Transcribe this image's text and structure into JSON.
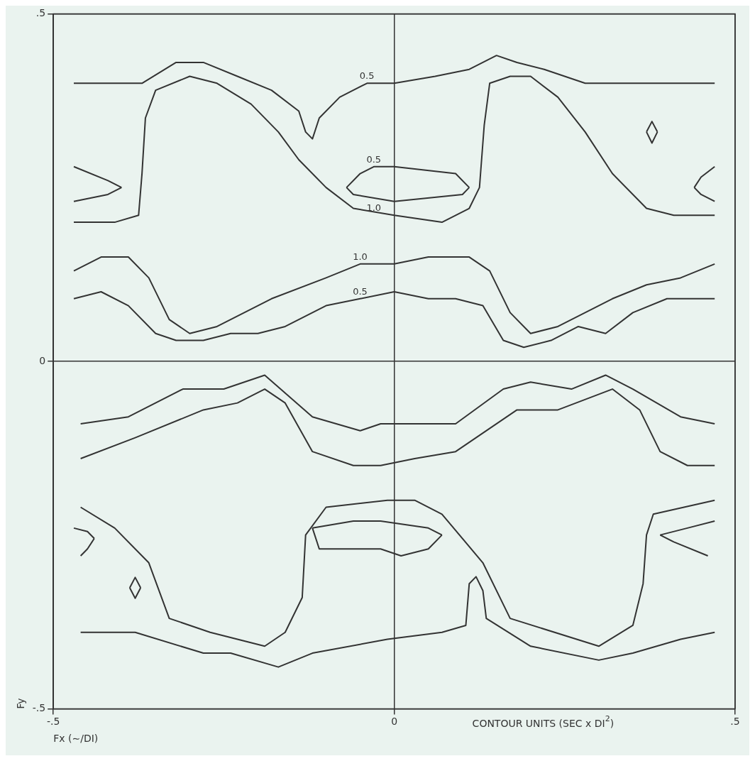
{
  "chart_data": {
    "type": "line",
    "xlabel": "Fx (∼/DI)",
    "ylabel": "Fy",
    "annotations": [
      {
        "text": "0.5",
        "x": -0.04,
        "y": 0.4
      },
      {
        "text": "0.5",
        "x": -0.03,
        "y": 0.28
      },
      {
        "text": "1.0",
        "x": -0.03,
        "y": 0.21
      },
      {
        "text": "1.0",
        "x": -0.05,
        "y": 0.14
      },
      {
        "text": "0.5",
        "x": -0.05,
        "y": 0.09
      },
      "CONTOUR UNITS (SEC x DI$^{2}$)"
    ],
    "xlim": [
      -0.5,
      0.5
    ],
    "ylim": [
      -0.5,
      0.5
    ],
    "xticks": [
      {
        "value": -0.5,
        "label": "-.5"
      },
      0,
      {
        "value": 0.5,
        "label": ".5"
      }
    ],
    "yticks": [
      {
        "value": -0.5,
        "label": "-.5"
      },
      0,
      {
        "value": 0.5,
        "label": ".5"
      }
    ],
    "grid": true,
    "legend": false,
    "marker": "none",
    "line_style": "solid",
    "series": [
      {
        "color": "#333333",
        "x": [
          -0.47,
          -0.37,
          -0.32,
          -0.28,
          -0.23,
          -0.18,
          -0.14,
          -0.13,
          -0.12,
          -0.11,
          -0.08,
          -0.04,
          0,
          0.06,
          0.11,
          0.15,
          0.18,
          0.22,
          0.28,
          0.35,
          0.47
        ],
        "values": [
          0.4,
          0.4,
          0.43,
          0.43,
          0.41,
          0.39,
          0.36,
          0.33,
          0.32,
          0.35,
          0.38,
          0.4,
          0.4,
          0.41,
          0.42,
          0.44,
          0.43,
          0.42,
          0.4,
          0.4,
          0.4
        ]
      },
      {
        "color": "#333333",
        "x": [
          -0.47,
          -0.41,
          -0.375,
          -0.37,
          -0.365,
          -0.35,
          -0.3,
          -0.26,
          -0.21,
          -0.17,
          -0.14,
          -0.1,
          -0.06,
          0,
          0.07,
          0.11,
          0.125,
          0.132,
          0.14,
          0.17,
          0.2,
          0.24,
          0.28,
          0.32,
          0.37,
          0.41,
          0.47
        ],
        "values": [
          0.2,
          0.2,
          0.21,
          0.27,
          0.35,
          0.39,
          0.41,
          0.4,
          0.37,
          0.33,
          0.29,
          0.25,
          0.22,
          0.21,
          0.2,
          0.22,
          0.25,
          0.34,
          0.4,
          0.41,
          0.41,
          0.38,
          0.33,
          0.27,
          0.22,
          0.21,
          0.21
        ]
      },
      {
        "color": "#333333",
        "x": [
          -0.07,
          -0.05,
          -0.03,
          0,
          0.09,
          0.11
        ],
        "values": [
          0.25,
          0.27,
          0.28,
          0.28,
          0.27,
          0.25
        ]
      },
      {
        "color": "#333333",
        "x": [
          -0.07,
          -0.06,
          0,
          0.1,
          0.11
        ],
        "values": [
          0.25,
          0.24,
          0.23,
          0.24,
          0.25
        ]
      },
      {
        "color": "#333333",
        "x": [
          -0.47,
          -0.42,
          -0.4
        ],
        "values": [
          0.28,
          0.26,
          0.25
        ]
      },
      {
        "color": "#333333",
        "x": [
          -0.47,
          -0.42,
          -0.4
        ],
        "values": [
          0.23,
          0.24,
          0.25
        ]
      },
      {
        "color": "#333333",
        "x": [
          0.44,
          0.45,
          0.47
        ],
        "values": [
          0.25,
          0.265,
          0.28
        ]
      },
      {
        "color": "#333333",
        "x": [
          0.44,
          0.45,
          0.47
        ],
        "values": [
          0.25,
          0.24,
          0.23
        ]
      },
      {
        "color": "#333333",
        "x": [
          0.37,
          0.378,
          0.386
        ],
        "values": [
          0.33,
          0.345,
          0.33
        ]
      },
      {
        "color": "#333333",
        "x": [
          0.37,
          0.378,
          0.386
        ],
        "values": [
          0.33,
          0.314,
          0.33
        ]
      },
      {
        "color": "#333333",
        "x": [
          -0.47,
          -0.43,
          -0.39,
          -0.36,
          -0.33,
          -0.3,
          -0.26,
          -0.22,
          -0.18,
          -0.1,
          -0.05,
          0,
          0.05,
          0.07,
          0.11,
          0.14,
          0.17,
          0.2,
          0.24,
          0.28,
          0.32,
          0.37,
          0.42,
          0.47
        ],
        "values": [
          0.13,
          0.15,
          0.15,
          0.12,
          0.06,
          0.04,
          0.05,
          0.07,
          0.09,
          0.12,
          0.14,
          0.14,
          0.15,
          0.15,
          0.15,
          0.13,
          0.07,
          0.04,
          0.05,
          0.07,
          0.09,
          0.11,
          0.12,
          0.14
        ]
      },
      {
        "color": "#333333",
        "x": [
          -0.47,
          -0.43,
          -0.39,
          -0.35,
          -0.32,
          -0.28,
          -0.24,
          -0.2,
          -0.16,
          -0.1,
          -0.05,
          0,
          0.05,
          0.09,
          0.13,
          0.16,
          0.19,
          0.23,
          0.27,
          0.31,
          0.35,
          0.4,
          0.47
        ],
        "values": [
          0.09,
          0.1,
          0.08,
          0.04,
          0.03,
          0.03,
          0.04,
          0.04,
          0.05,
          0.08,
          0.09,
          0.1,
          0.09,
          0.09,
          0.08,
          0.03,
          0.02,
          0.03,
          0.05,
          0.04,
          0.07,
          0.09,
          0.09
        ]
      },
      {
        "color": "#333333",
        "x": [
          -0.46,
          -0.39,
          -0.31,
          -0.25,
          -0.19,
          -0.12,
          -0.05,
          -0.02,
          0.09,
          0.16,
          0.2,
          0.26,
          0.31,
          0.35,
          0.42,
          0.47
        ],
        "values": [
          -0.09,
          -0.08,
          -0.04,
          -0.04,
          -0.02,
          -0.08,
          -0.1,
          -0.09,
          -0.09,
          -0.04,
          -0.03,
          -0.04,
          -0.02,
          -0.04,
          -0.08,
          -0.09
        ]
      },
      {
        "color": "#333333",
        "x": [
          -0.46,
          -0.38,
          -0.28,
          -0.23,
          -0.19,
          -0.16,
          -0.12,
          -0.06,
          -0.02,
          0.03,
          0.09,
          0.18,
          0.24,
          0.32,
          0.36,
          0.39,
          0.43,
          0.47
        ],
        "values": [
          -0.14,
          -0.11,
          -0.07,
          -0.06,
          -0.04,
          -0.06,
          -0.13,
          -0.15,
          -0.15,
          -0.14,
          -0.13,
          -0.07,
          -0.07,
          -0.04,
          -0.07,
          -0.13,
          -0.15,
          -0.15
        ]
      },
      {
        "color": "#333333",
        "x": [
          -0.46,
          -0.41,
          -0.36,
          -0.33,
          -0.27,
          -0.19,
          -0.16,
          -0.135,
          -0.13,
          -0.1,
          -0.01,
          0.03,
          0.07,
          0.13,
          0.17,
          0.3,
          0.35,
          0.365,
          0.37,
          0.38,
          0.47
        ],
        "values": [
          -0.21,
          -0.24,
          -0.29,
          -0.37,
          -0.39,
          -0.41,
          -0.39,
          -0.34,
          -0.25,
          -0.21,
          -0.2,
          -0.2,
          -0.22,
          -0.29,
          -0.37,
          -0.41,
          -0.38,
          -0.32,
          -0.25,
          -0.22,
          -0.2
        ]
      },
      {
        "color": "#333333",
        "x": [
          -0.12,
          -0.06,
          -0.02,
          0.05,
          0.07
        ],
        "values": [
          -0.24,
          -0.23,
          -0.23,
          -0.24,
          -0.25
        ]
      },
      {
        "color": "#333333",
        "x": [
          -0.12,
          -0.11,
          -0.06,
          -0.02,
          0.01,
          0.05,
          0.07
        ],
        "values": [
          -0.24,
          -0.27,
          -0.27,
          -0.27,
          -0.28,
          -0.27,
          -0.25
        ]
      },
      {
        "color": "#333333",
        "x": [
          -0.47,
          -0.45,
          -0.44
        ],
        "values": [
          -0.24,
          -0.245,
          -0.255
        ]
      },
      {
        "color": "#333333",
        "x": [
          -0.46,
          -0.45,
          -0.44
        ],
        "values": [
          -0.28,
          -0.27,
          -0.255
        ]
      },
      {
        "color": "#333333",
        "x": [
          0.39,
          0.43,
          0.47
        ],
        "values": [
          -0.25,
          -0.24,
          -0.23
        ]
      },
      {
        "color": "#333333",
        "x": [
          0.39,
          0.41,
          0.46
        ],
        "values": [
          -0.25,
          -0.26,
          -0.28
        ]
      },
      {
        "color": "#333333",
        "x": [
          -0.388,
          -0.38,
          -0.372
        ],
        "values": [
          -0.326,
          -0.311,
          -0.326
        ]
      },
      {
        "color": "#333333",
        "x": [
          -0.388,
          -0.38,
          -0.372
        ],
        "values": [
          -0.326,
          -0.341,
          -0.326
        ]
      },
      {
        "color": "#333333",
        "x": [
          -0.46,
          -0.38,
          -0.28,
          -0.24,
          -0.17,
          -0.12,
          -0.01,
          0.07,
          0.105,
          0.11,
          0.12,
          0.13,
          0.135,
          0.2,
          0.3,
          0.35,
          0.42,
          0.47
        ],
        "values": [
          -0.39,
          -0.39,
          -0.42,
          -0.42,
          -0.44,
          -0.42,
          -0.4,
          -0.39,
          -0.38,
          -0.32,
          -0.31,
          -0.33,
          -0.37,
          -0.41,
          -0.43,
          -0.42,
          -0.4,
          -0.39
        ]
      }
    ]
  }
}
